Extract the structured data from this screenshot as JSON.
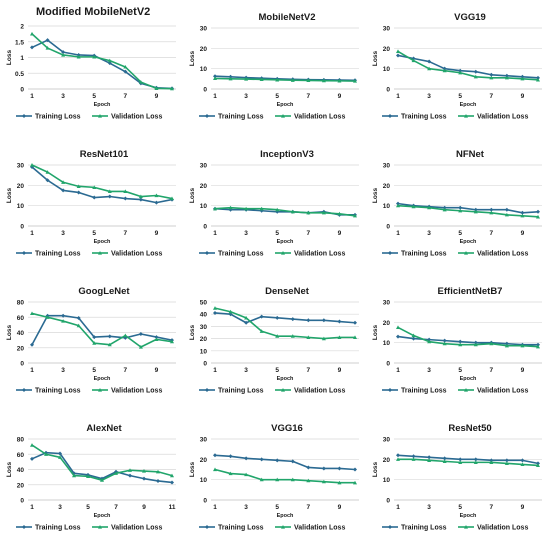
{
  "chart_data": [
    {
      "type": "line",
      "title": "Modified MobileNetV2",
      "xlabel": "Epoch",
      "ylabel": "Loss",
      "ylim": [
        0,
        2
      ],
      "yticks": [
        0,
        0.5,
        1,
        1.5,
        2
      ],
      "xticks": [
        1,
        3,
        5,
        7,
        9
      ],
      "x": [
        1,
        2,
        3,
        4,
        5,
        6,
        7,
        8,
        9,
        10
      ],
      "series": [
        {
          "name": "Training  Loss",
          "values": [
            1.32,
            1.55,
            1.17,
            1.08,
            1.06,
            0.82,
            0.55,
            0.18,
            0.04,
            0.02
          ]
        },
        {
          "name": "Validation Loss",
          "values": [
            1.75,
            1.3,
            1.08,
            1.02,
            1.02,
            0.9,
            0.7,
            0.22,
            0.02,
            0.01
          ]
        }
      ]
    },
    {
      "type": "line",
      "title": "MobileNetV2",
      "xlabel": "Epoch",
      "ylabel": "Loss",
      "ylim": [
        0,
        30
      ],
      "yticks": [
        0,
        10,
        20,
        30
      ],
      "xticks": [
        1,
        3,
        5,
        7,
        9
      ],
      "x": [
        1,
        2,
        3,
        4,
        5,
        6,
        7,
        8,
        9,
        10
      ],
      "series": [
        {
          "name": "Training  Loss",
          "values": [
            6.3,
            6.0,
            5.6,
            5.3,
            5.0,
            4.8,
            4.6,
            4.5,
            4.4,
            4.3
          ]
        },
        {
          "name": "Validation Loss",
          "values": [
            5.2,
            5.0,
            4.9,
            4.7,
            4.5,
            4.3,
            4.2,
            4.1,
            4.0,
            3.9
          ]
        }
      ]
    },
    {
      "type": "line",
      "title": "VGG19",
      "xlabel": "Epoch",
      "ylabel": "Loss",
      "ylim": [
        0,
        30
      ],
      "yticks": [
        0,
        10,
        20,
        30
      ],
      "xticks": [
        1,
        3,
        5,
        7,
        9
      ],
      "x": [
        1,
        2,
        3,
        4,
        5,
        6,
        7,
        8,
        9,
        10
      ],
      "series": [
        {
          "name": "Training  Loss",
          "values": [
            16.5,
            15.0,
            13.5,
            10.0,
            9.0,
            8.5,
            7.0,
            6.5,
            6.0,
            5.5
          ]
        },
        {
          "name": "Validation Loss",
          "values": [
            18.5,
            14.0,
            10.0,
            9.0,
            8.0,
            6.0,
            5.5,
            5.5,
            5.0,
            4.5
          ]
        }
      ]
    },
    {
      "type": "line",
      "title": "ResNet101",
      "xlabel": "Epoch",
      "ylabel": "Loss",
      "ylim": [
        0,
        30
      ],
      "yticks": [
        0,
        10,
        20,
        30
      ],
      "xticks": [
        1,
        3,
        5,
        7,
        9
      ],
      "x": [
        1,
        2,
        3,
        4,
        5,
        6,
        7,
        8,
        9,
        10
      ],
      "series": [
        {
          "name": "Training  Loss",
          "values": [
            29.0,
            22.5,
            17.5,
            16.5,
            14.0,
            14.5,
            13.5,
            13.0,
            11.5,
            13.0
          ]
        },
        {
          "name": "Validation Loss",
          "values": [
            30.0,
            26.5,
            21.5,
            19.5,
            19.0,
            17.0,
            17.0,
            14.5,
            15.0,
            13.5
          ]
        }
      ]
    },
    {
      "type": "line",
      "title": "InceptionV3",
      "xlabel": "Epoch",
      "ylabel": "Loss",
      "ylim": [
        0,
        30
      ],
      "yticks": [
        0,
        10,
        20,
        30
      ],
      "xticks": [
        1,
        3,
        5,
        7,
        9
      ],
      "x": [
        1,
        2,
        3,
        4,
        5,
        6,
        7,
        8,
        9,
        10
      ],
      "series": [
        {
          "name": "Training  Loss",
          "values": [
            8.5,
            8.0,
            8.0,
            7.5,
            7.0,
            7.0,
            6.5,
            7.0,
            5.5,
            5.5
          ]
        },
        {
          "name": "Validation Loss",
          "values": [
            8.5,
            9.0,
            8.5,
            8.5,
            8.0,
            7.0,
            6.5,
            6.5,
            6.0,
            5.0
          ]
        }
      ]
    },
    {
      "type": "line",
      "title": "NFNet",
      "xlabel": "Epoch",
      "ylabel": "Loss",
      "ylim": [
        0,
        30
      ],
      "yticks": [
        0,
        10,
        20,
        30
      ],
      "xticks": [
        1,
        3,
        5,
        7,
        9
      ],
      "x": [
        1,
        2,
        3,
        4,
        5,
        6,
        7,
        8,
        9,
        10
      ],
      "series": [
        {
          "name": "Training  Loss",
          "values": [
            11.0,
            10.0,
            9.5,
            9.0,
            9.0,
            8.0,
            8.0,
            8.0,
            6.5,
            7.0
          ]
        },
        {
          "name": "Validation Loss",
          "values": [
            10.0,
            9.5,
            9.0,
            8.0,
            7.5,
            7.0,
            6.5,
            5.5,
            5.0,
            4.5
          ]
        }
      ]
    },
    {
      "type": "line",
      "title": "GoogLeNet",
      "xlabel": "Epoch",
      "ylabel": "Loss",
      "ylim": [
        0,
        80
      ],
      "yticks": [
        0,
        20,
        40,
        60,
        80
      ],
      "xticks": [
        1,
        3,
        5,
        7,
        9
      ],
      "x": [
        1,
        2,
        3,
        4,
        5,
        6,
        7,
        8,
        9,
        10
      ],
      "series": [
        {
          "name": "Training  Loss",
          "values": [
            24,
            62,
            62,
            59,
            34,
            35,
            33,
            38,
            34,
            30
          ]
        },
        {
          "name": "Validation Loss",
          "values": [
            65,
            60,
            55,
            49,
            26,
            24,
            36,
            21,
            31,
            28
          ]
        }
      ]
    },
    {
      "type": "line",
      "title": "DenseNet",
      "xlabel": "Epoch",
      "ylabel": "Loss",
      "ylim": [
        0,
        50
      ],
      "yticks": [
        0,
        10,
        20,
        30,
        40,
        50
      ],
      "xticks": [
        1,
        3,
        5,
        7,
        9
      ],
      "x": [
        1,
        2,
        3,
        4,
        5,
        6,
        7,
        8,
        9,
        10
      ],
      "series": [
        {
          "name": "Training  Loss",
          "values": [
            41,
            40,
            33,
            38,
            37,
            36,
            35,
            35,
            34,
            33
          ]
        },
        {
          "name": "Validation Loss",
          "values": [
            45,
            42,
            37,
            26,
            22,
            22,
            21,
            20,
            21,
            21
          ]
        }
      ]
    },
    {
      "type": "line",
      "title": "EfficientNetB7",
      "xlabel": "Epoch",
      "ylabel": "Loss",
      "ylim": [
        0,
        30
      ],
      "yticks": [
        0,
        10,
        20,
        30
      ],
      "xticks": [
        1,
        3,
        5,
        7,
        9
      ],
      "x": [
        1,
        2,
        3,
        4,
        5,
        6,
        7,
        8,
        9,
        10
      ],
      "series": [
        {
          "name": "Training  Loss",
          "values": [
            13.0,
            12.0,
            11.5,
            11.0,
            10.5,
            10.0,
            10.0,
            9.5,
            9.0,
            9.0
          ]
        },
        {
          "name": "Validation Loss",
          "values": [
            17.5,
            13.5,
            10.5,
            9.5,
            9.0,
            9.0,
            9.5,
            8.5,
            8.5,
            8.0
          ]
        }
      ]
    },
    {
      "type": "line",
      "title": "AlexNet",
      "xlabel": "Epoch",
      "ylabel": "Loss",
      "ylim": [
        0,
        80
      ],
      "yticks": [
        0,
        20,
        40,
        60,
        80
      ],
      "xticks": [
        1,
        3,
        5,
        7,
        9,
        11
      ],
      "x": [
        1,
        2,
        3,
        4,
        5,
        6,
        7,
        8,
        9,
        10,
        11
      ],
      "series": [
        {
          "name": "Training  Loss",
          "values": [
            54,
            62,
            61,
            35,
            33,
            28,
            37,
            32,
            28,
            25,
            23
          ]
        },
        {
          "name": "Validation Loss",
          "values": [
            72,
            60,
            56,
            32,
            31,
            26,
            35,
            39,
            38,
            37,
            32
          ]
        }
      ]
    },
    {
      "type": "line",
      "title": "VGG16",
      "xlabel": "Epoch",
      "ylabel": "Loss",
      "ylim": [
        0,
        30
      ],
      "yticks": [
        0,
        10,
        20,
        30
      ],
      "xticks": [
        1,
        3,
        5,
        7,
        9
      ],
      "x": [
        1,
        2,
        3,
        4,
        5,
        6,
        7,
        8,
        9,
        10
      ],
      "series": [
        {
          "name": "Training  Loss",
          "values": [
            22.0,
            21.5,
            20.5,
            20.0,
            19.5,
            19.0,
            16.0,
            15.5,
            15.5,
            15.0
          ]
        },
        {
          "name": "Validation Loss",
          "values": [
            15.0,
            13.0,
            12.5,
            10.0,
            10.0,
            10.0,
            9.5,
            9.0,
            8.5,
            8.5
          ]
        }
      ]
    },
    {
      "type": "line",
      "title": "ResNet50",
      "xlabel": "Epoch",
      "ylabel": "Loss",
      "ylim": [
        0,
        30
      ],
      "yticks": [
        0,
        10,
        20,
        30
      ],
      "xticks": [
        1,
        3,
        5,
        7,
        9
      ],
      "x": [
        1,
        2,
        3,
        4,
        5,
        6,
        7,
        8,
        9,
        10
      ],
      "series": [
        {
          "name": "Training  Loss",
          "values": [
            22.0,
            21.5,
            21.0,
            20.5,
            20.0,
            20.0,
            19.5,
            19.5,
            19.5,
            18.0
          ]
        },
        {
          "name": "Validation Loss",
          "values": [
            20.0,
            20.0,
            19.5,
            19.0,
            18.5,
            18.5,
            18.5,
            18.0,
            17.5,
            17.0
          ]
        }
      ]
    }
  ],
  "colors": {
    "training": "#2b6a92",
    "validation": "#21a56b",
    "grid": "#d9d9d9",
    "axis": "#bfbfbf",
    "text": "#1a1a1a"
  }
}
